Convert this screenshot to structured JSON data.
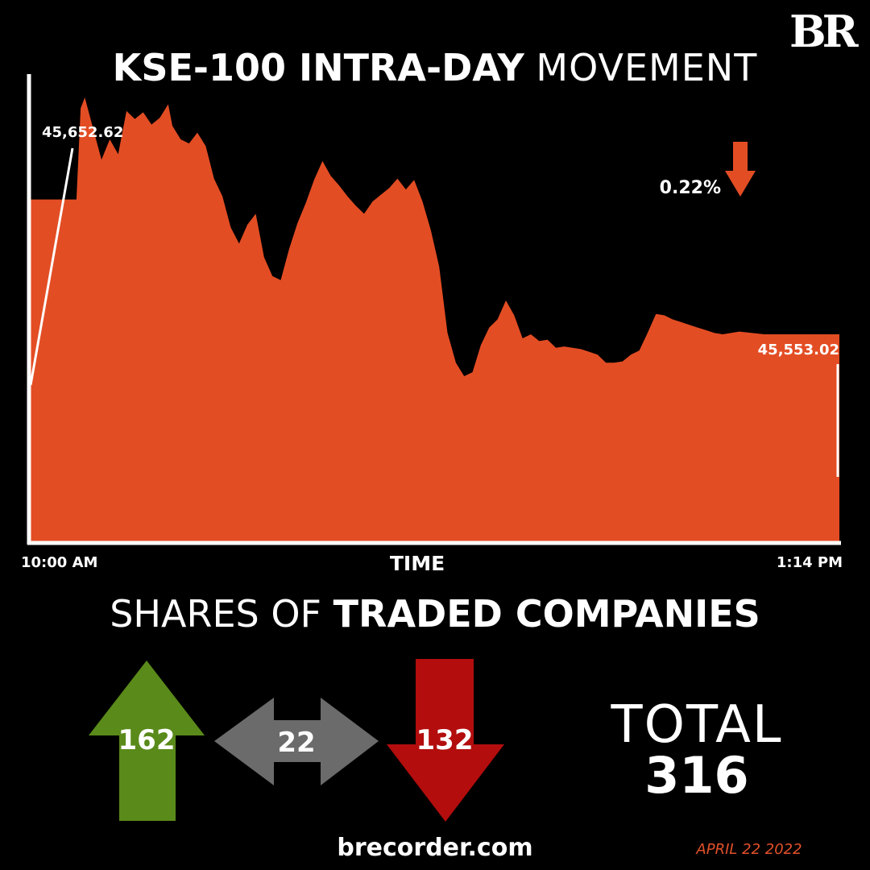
{
  "brand": {
    "logo_text": "BR",
    "website": "brecorder.com",
    "date": "APRIL 22 2022"
  },
  "title": {
    "bold": "KSE-100 INTRA-DAY",
    "light": "MOVEMENT"
  },
  "colors": {
    "area": "#e34d24",
    "up": "#5a8a1a",
    "neutral": "#6b6b6b",
    "down": "#b30d0d",
    "date": "#e0502a"
  },
  "chart_data": {
    "type": "area",
    "title": "KSE-100 INTRA-DAY MOVEMENT",
    "xlabel": "TIME",
    "x_start_label": "10:00 AM",
    "x_end_label": "1:14 PM",
    "open_value": 45652.62,
    "open_label": "45,652.62",
    "close_value": 45553.02,
    "close_label": "45,553.02",
    "change_label": "0.22%",
    "direction": "down",
    "ylim": [
      45400,
      45800
    ],
    "x_minutes": [
      0,
      11,
      12,
      13,
      15,
      17,
      19,
      21,
      23,
      25,
      27,
      29,
      31,
      33,
      34,
      36,
      38,
      40,
      42,
      44,
      46,
      48,
      50,
      52,
      54,
      56,
      58,
      60,
      62,
      64,
      66,
      68,
      70,
      72,
      74,
      76,
      78,
      80,
      82,
      84,
      86,
      88,
      90,
      92,
      94,
      96,
      98,
      100,
      102,
      104,
      106,
      108,
      110,
      112,
      114,
      116,
      118,
      120,
      122,
      124,
      126,
      128,
      130,
      132,
      134,
      136,
      138,
      140,
      142,
      144,
      146,
      148,
      150,
      152,
      154,
      156,
      158,
      160,
      162,
      164,
      166,
      170,
      176,
      182,
      186,
      194
    ],
    "values": [
      45652.6,
      45652.6,
      45720,
      45728,
      45705,
      45682,
      45697,
      45686,
      45718,
      45712,
      45717,
      45708,
      45713,
      45723,
      45707,
      45697,
      45694,
      45702,
      45692,
      45668,
      45655,
      45632,
      45620,
      45634,
      45642,
      45610,
      45596,
      45593,
      45616,
      45635,
      45650,
      45667,
      45681,
      45670,
      45663,
      45655,
      45648,
      45642,
      45651,
      45656,
      45661,
      45668,
      45660,
      45667,
      45651,
      45630,
      45603,
      45554,
      45532,
      45522,
      45525,
      45545,
      45558,
      45564,
      45578,
      45567,
      45550,
      45553,
      45548,
      45549,
      45543,
      45544,
      45543,
      45542,
      45540,
      45538,
      45532,
      45532,
      45533,
      45538,
      45541,
      45554,
      45568,
      45567,
      45564,
      45562,
      45560,
      45558,
      45556,
      45554,
      45553,
      45555,
      45553,
      45553,
      45553,
      45553
    ]
  },
  "breadth": {
    "heading_light": "SHARES OF",
    "heading_bold": "TRADED COMPANIES",
    "advanced": "162",
    "unchanged": "22",
    "declined": "132",
    "total_label": "TOTAL",
    "total": "316"
  }
}
